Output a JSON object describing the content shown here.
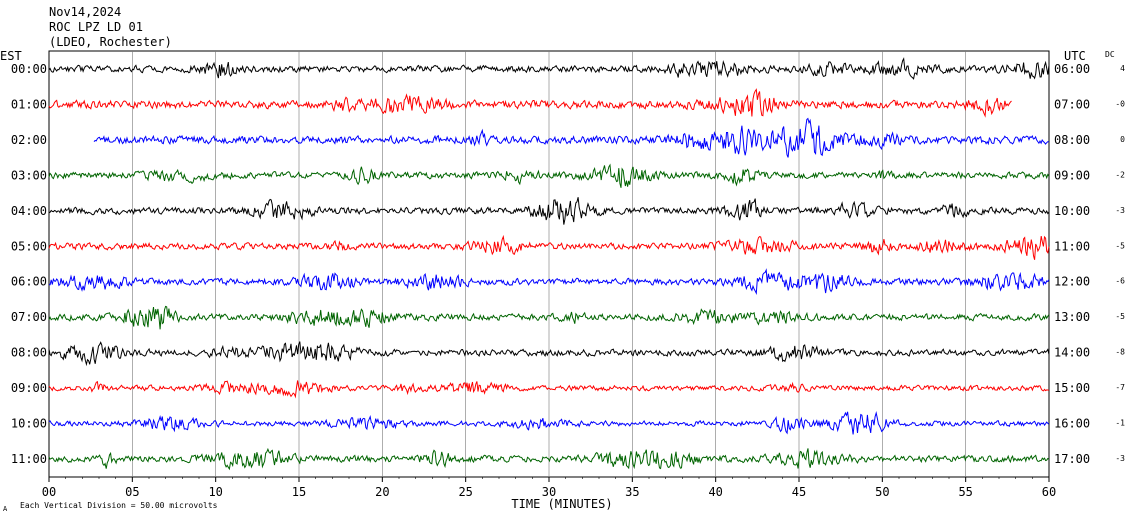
{
  "header": {
    "date": "Nov14,2024",
    "station": "ROC LPZ LD 01",
    "network": "(LDEO, Rochester)"
  },
  "chart_data": {
    "type": "line",
    "subtype": "helicorder",
    "xlabel": "TIME (MINUTES)",
    "xlim": [
      0,
      60
    ],
    "x_ticks": [
      "00",
      "05",
      "10",
      "15",
      "20",
      "25",
      "30",
      "35",
      "40",
      "45",
      "50",
      "55",
      "60"
    ],
    "left_axis_title": "EST",
    "right_axis_title": "UTC",
    "dc_label": "DC",
    "scale_note": "Each Vertical Division =   50.00 microvolts",
    "corner_mark": "A",
    "trace_colors": [
      "#000000",
      "#ff0000",
      "#0000ff",
      "#006400"
    ],
    "rows": [
      {
        "est": "00:00",
        "utc": "06:00",
        "dc": "4",
        "start_min": 0,
        "end_min": 60,
        "amplitude": 5
      },
      {
        "est": "01:00",
        "utc": "07:00",
        "dc": "-0",
        "start_min": 0,
        "end_min": 57.8,
        "amplitude": 6
      },
      {
        "est": "02:00",
        "utc": "08:00",
        "dc": "0",
        "start_min": 2.7,
        "end_min": 60,
        "amplitude": 6
      },
      {
        "est": "03:00",
        "utc": "09:00",
        "dc": "-2",
        "start_min": 0,
        "end_min": 60,
        "amplitude": 5
      },
      {
        "est": "04:00",
        "utc": "10:00",
        "dc": "-3",
        "start_min": 0,
        "end_min": 60,
        "amplitude": 5
      },
      {
        "est": "05:00",
        "utc": "11:00",
        "dc": "-5",
        "start_min": 0,
        "end_min": 60,
        "amplitude": 5
      },
      {
        "est": "06:00",
        "utc": "12:00",
        "dc": "-6",
        "start_min": 0,
        "end_min": 60,
        "amplitude": 5
      },
      {
        "est": "07:00",
        "utc": "13:00",
        "dc": "-5",
        "start_min": 0,
        "end_min": 60,
        "amplitude": 5
      },
      {
        "est": "08:00",
        "utc": "14:00",
        "dc": "-8",
        "start_min": 0,
        "end_min": 60,
        "amplitude": 5
      },
      {
        "est": "09:00",
        "utc": "15:00",
        "dc": "-7",
        "start_min": 0,
        "end_min": 60,
        "amplitude": 4
      },
      {
        "est": "10:00",
        "utc": "16:00",
        "dc": "-1",
        "start_min": 0,
        "end_min": 60,
        "amplitude": 4
      },
      {
        "est": "11:00",
        "utc": "17:00",
        "dc": "-3",
        "start_min": 0,
        "end_min": 60,
        "amplitude": 5
      }
    ]
  }
}
